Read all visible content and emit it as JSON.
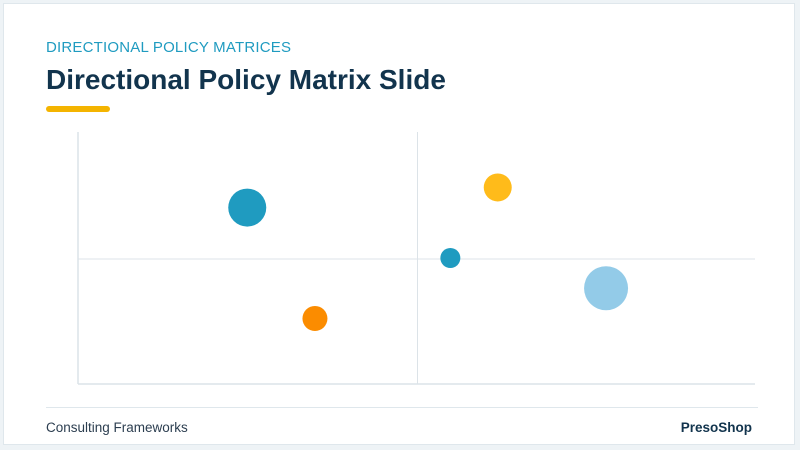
{
  "slide": {
    "kicker": "DIRECTIONAL POLICY MATRICES",
    "title": "Directional Policy Matrix Slide",
    "footer_left": "Consulting Frameworks",
    "footer_right": "PresoShop"
  },
  "colors": {
    "accent": "#f4b400",
    "kicker": "#1f9bc0",
    "title": "#12344d",
    "axis": "#dce3e8"
  },
  "chart_data": {
    "type": "scatter",
    "title": "",
    "xlabel": "",
    "ylabel": "",
    "xlim": [
      0,
      10
    ],
    "ylim": [
      0,
      10
    ],
    "grid": false,
    "quadrant_divider": {
      "x": 5,
      "y": 5
    },
    "points": [
      {
        "x": 2.5,
        "y": 7.0,
        "size": 19,
        "color": "#1f9bc0"
      },
      {
        "x": 3.5,
        "y": 2.6,
        "size": 12.5,
        "color": "#fb8c00"
      },
      {
        "x": 6.2,
        "y": 7.8,
        "size": 14,
        "color": "#ffbb1a"
      },
      {
        "x": 5.5,
        "y": 5.0,
        "size": 10,
        "color": "#1f9bc0"
      },
      {
        "x": 7.8,
        "y": 3.8,
        "size": 22,
        "color": "#93cbe8"
      }
    ]
  }
}
